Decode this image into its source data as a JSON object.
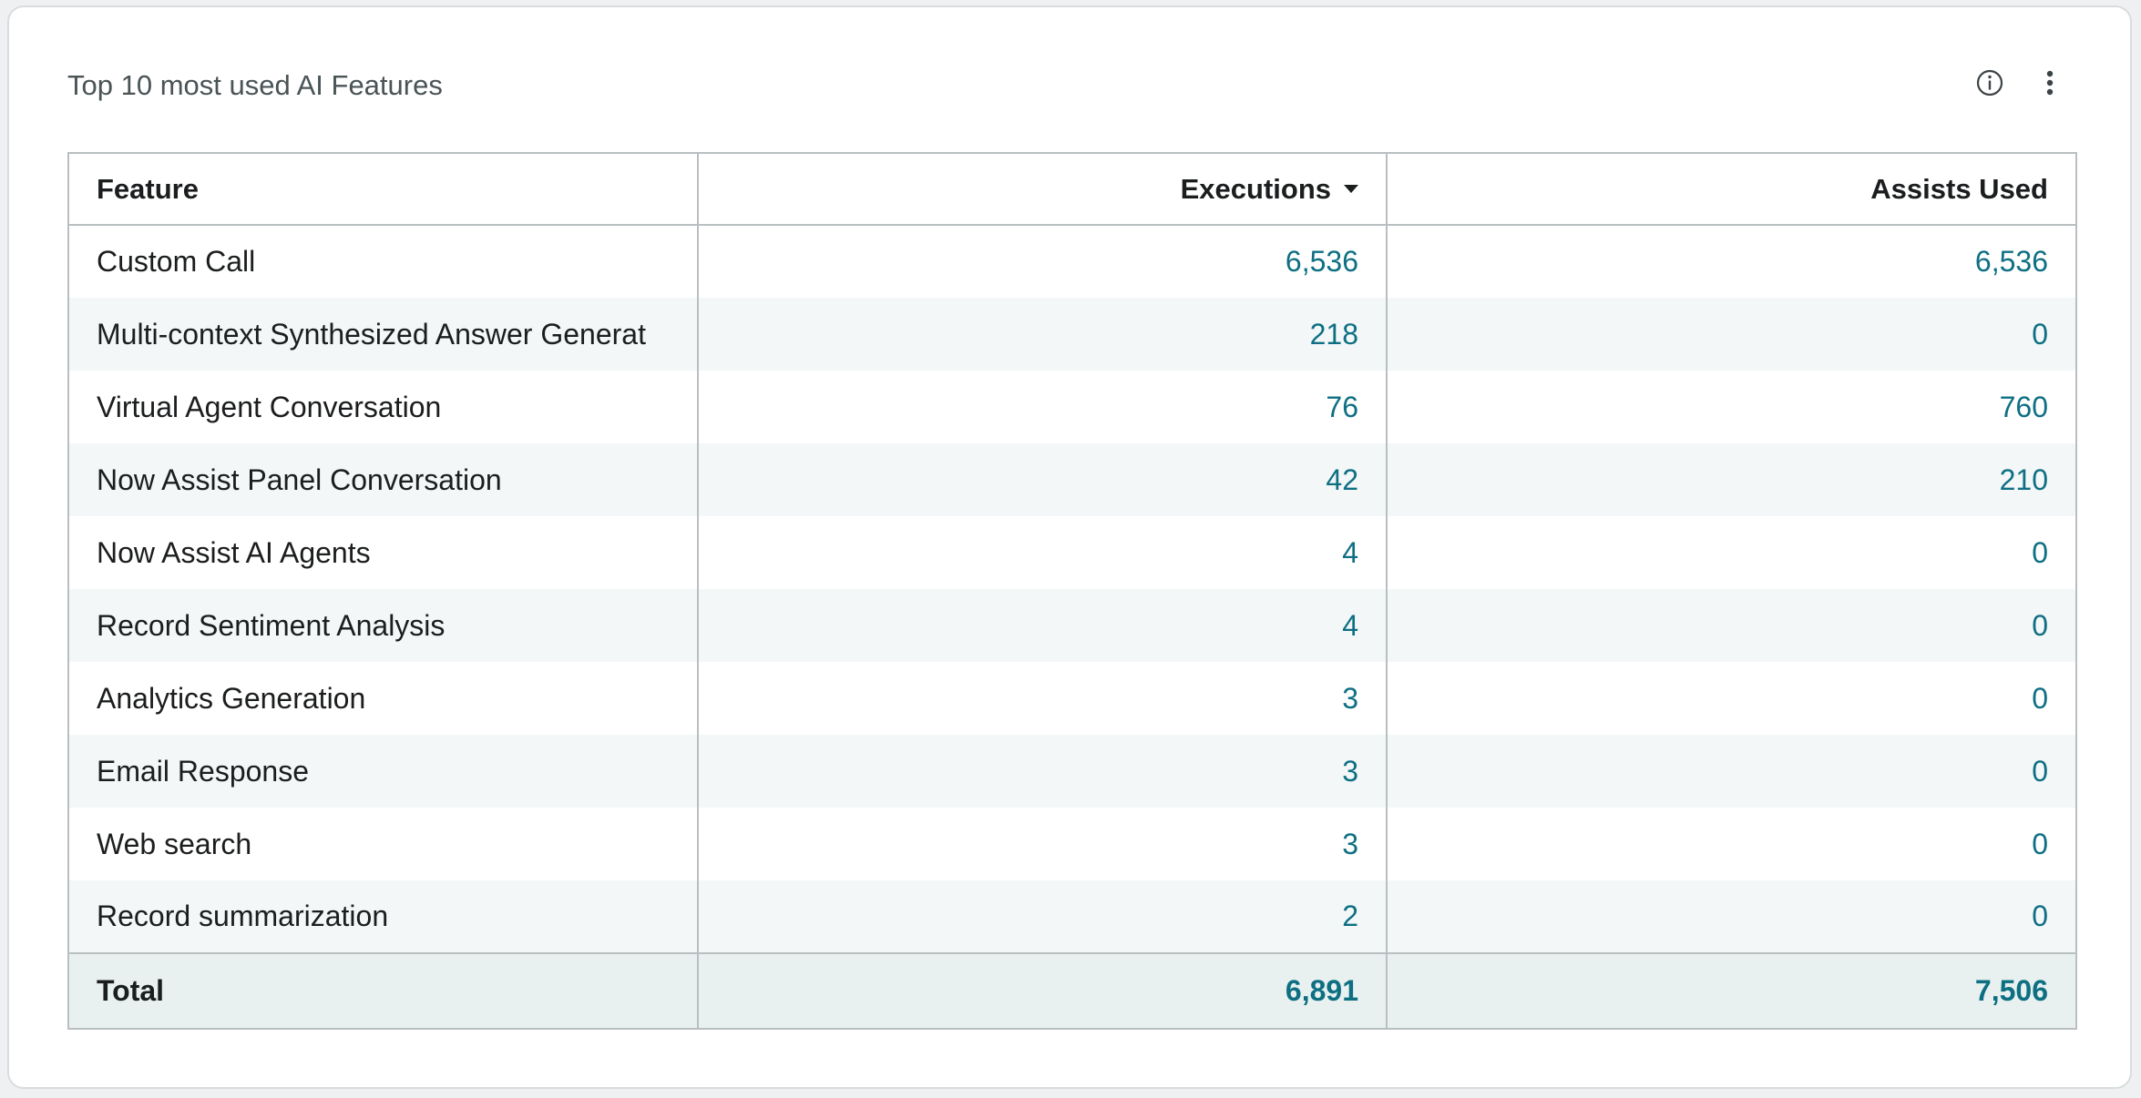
{
  "widget": {
    "title": "Top 10 most used AI Features",
    "actions": [
      {
        "icon": "info-icon"
      },
      {
        "icon": "more-vertical-icon"
      }
    ]
  },
  "table": {
    "columns": [
      {
        "label": "Feature",
        "align": "left"
      },
      {
        "label": "Executions",
        "align": "right",
        "sorted": "descending"
      },
      {
        "label": "Assists Used",
        "align": "right"
      }
    ],
    "rows": [
      {
        "feature": "Custom Call",
        "executions": "6,536",
        "assists": "6,536"
      },
      {
        "feature": "Multi-context Synthesized Answer Generat",
        "executions": "218",
        "assists": "0"
      },
      {
        "feature": "Virtual Agent Conversation",
        "executions": "76",
        "assists": "760"
      },
      {
        "feature": "Now Assist Panel Conversation",
        "executions": "42",
        "assists": "210"
      },
      {
        "feature": "Now Assist AI Agents",
        "executions": "4",
        "assists": "0"
      },
      {
        "feature": "Record Sentiment Analysis",
        "executions": "4",
        "assists": "0"
      },
      {
        "feature": "Analytics Generation",
        "executions": "3",
        "assists": "0"
      },
      {
        "feature": "Email Response",
        "executions": "3",
        "assists": "0"
      },
      {
        "feature": "Web search",
        "executions": "3",
        "assists": "0"
      },
      {
        "feature": "Record summarization",
        "executions": "2",
        "assists": "0"
      }
    ],
    "total": {
      "label": "Total",
      "executions": "6,891",
      "assists": "7,506"
    }
  },
  "colors": {
    "link": "#0e6f83",
    "total_row_bg": "#e8f1f0",
    "zebra_bg": "#f3f7f8"
  }
}
